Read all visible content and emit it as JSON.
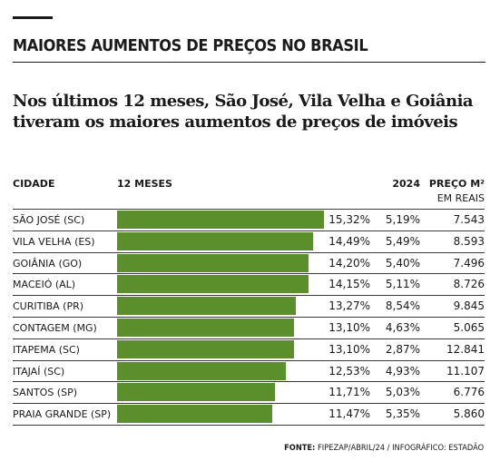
{
  "kicker": "MAIORES AUMENTOS DE PREÇOS NO BRASIL",
  "headline": "Nos últimos 12 meses, São José, Vila Velha e Goiânia tiveram os maiores aumentos de preços de imóveis",
  "columns": {
    "city": "CIDADE",
    "months12": "12 MESES",
    "year": "2024",
    "price": "PREÇO M²",
    "price_sub": "EM REAIS"
  },
  "source": {
    "label": "FONTE:",
    "text": "FIPEZAP/ABRIL/24 / INFOGRÁFICO: ESTADÃO"
  },
  "colors": {
    "bar": "#5a8f2b",
    "text": "#1a1a1a"
  },
  "chart_data": {
    "type": "bar",
    "orientation": "horizontal",
    "categories": [
      "SÃO JOSÉ (SC)",
      "VILA VELHA (ES)",
      "GOIÂNIA (GO)",
      "MACEIÓ (AL)",
      "CURITIBA (PR)",
      "CONTAGEM (MG)",
      "ITAPEMA (SC)",
      "ITAJAÍ (SC)",
      "SANTOS (SP)",
      "PRAIA GRANDE (SP)"
    ],
    "values": [
      15.32,
      14.49,
      14.2,
      14.15,
      13.27,
      13.1,
      13.1,
      12.53,
      11.71,
      11.47
    ],
    "value_labels": [
      "15,32%",
      "14,49%",
      "14,20%",
      "14,15%",
      "13,27%",
      "13,10%",
      "13,10%",
      "12,53%",
      "11,71%",
      "11,47%"
    ],
    "year_2024": [
      "5,19%",
      "5,49%",
      "5,40%",
      "5,11%",
      "8,54%",
      "4,63%",
      "2,87%",
      "4,93%",
      "5,03%",
      "5,35%"
    ],
    "price_m2": [
      "7.543",
      "8.593",
      "7.496",
      "8.726",
      "9.845",
      "5.065",
      "12.841",
      "11.107",
      "6.776",
      "5.860"
    ],
    "xlim": [
      0,
      15.32
    ]
  }
}
